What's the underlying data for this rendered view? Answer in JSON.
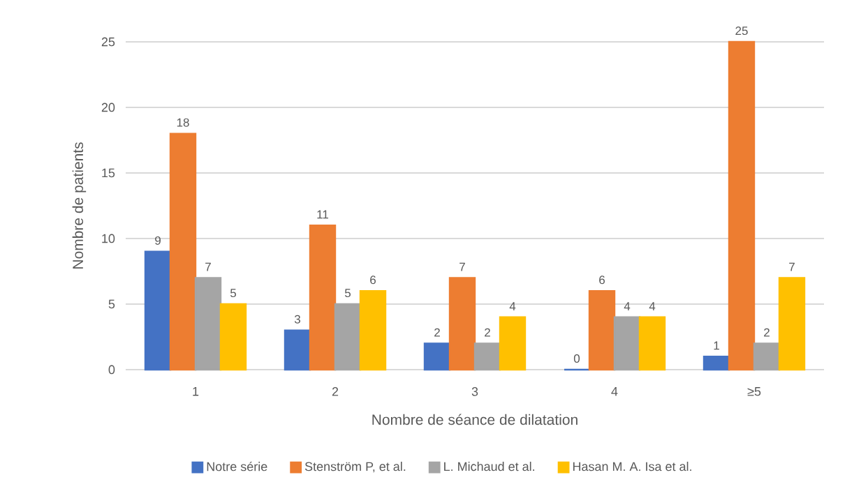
{
  "chart_data": {
    "type": "bar",
    "xlabel": "Nombre de séance de dilatation",
    "ylabel": "Nombre de patients",
    "categories": [
      "1",
      "2",
      "3",
      "4",
      "≥5"
    ],
    "series": [
      {
        "name": "Notre série",
        "color": "#4472c4",
        "values": [
          9,
          3,
          2,
          0,
          1
        ]
      },
      {
        "name": "Stenström P, et al.",
        "color": "#ed7d31",
        "values": [
          18,
          11,
          7,
          6,
          25
        ]
      },
      {
        "name": "L. Michaud et al.",
        "color": "#a5a5a5",
        "values": [
          7,
          5,
          2,
          4,
          2
        ]
      },
      {
        "name": "Hasan M. A. Isa et al.",
        "color": "#ffc000",
        "values": [
          5,
          6,
          4,
          4,
          7
        ]
      }
    ],
    "ylim": [
      0,
      25
    ],
    "yticks": [
      0,
      5,
      10,
      15,
      20,
      25
    ],
    "grid": "y",
    "data_labels": true,
    "legend": "bottom"
  }
}
